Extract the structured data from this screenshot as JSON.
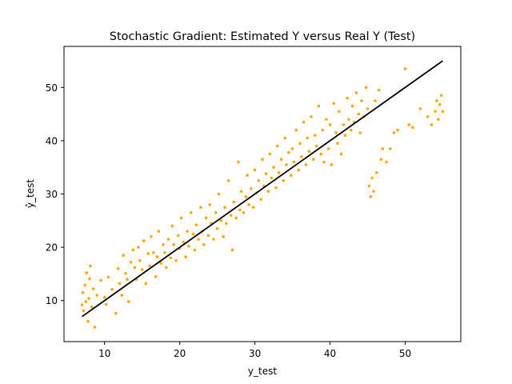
{
  "chart_data": {
    "type": "scatter",
    "title": "Stochastic Gradient: Estimated Y versus Real Y (Test)",
    "xlabel": "y_test",
    "ylabel": "ŷ_test",
    "xlim": [
      4.6,
      57.4
    ],
    "ylim": [
      2.3,
      57.7
    ],
    "xticks": [
      10,
      20,
      30,
      40,
      50
    ],
    "yticks": [
      10,
      20,
      30,
      40,
      50
    ],
    "grid": false,
    "colors": {
      "points": "#ffa500",
      "line": "#000000"
    },
    "reference_line": {
      "x": [
        7,
        55
      ],
      "y": [
        7,
        55
      ]
    },
    "series": [
      {
        "values": [
          [
            7.0,
            9.2
          ],
          [
            7.1,
            11.5
          ],
          [
            7.2,
            8.1
          ],
          [
            7.4,
            12.9
          ],
          [
            7.5,
            9.8
          ],
          [
            7.6,
            15.2
          ],
          [
            7.8,
            6.1
          ],
          [
            7.9,
            10.4
          ],
          [
            8.0,
            14.1
          ],
          [
            8.1,
            16.5
          ],
          [
            8.3,
            8.8
          ],
          [
            8.5,
            12.2
          ],
          [
            8.7,
            5.0
          ],
          [
            9.0,
            11.0
          ],
          [
            9.5,
            13.8
          ],
          [
            10.0,
            10.6
          ],
          [
            10.2,
            9.3
          ],
          [
            10.5,
            14.4
          ],
          [
            11.0,
            12.1
          ],
          [
            11.5,
            7.6
          ],
          [
            11.8,
            16.0
          ],
          [
            12.0,
            13.2
          ],
          [
            12.3,
            11.0
          ],
          [
            12.5,
            18.5
          ],
          [
            12.8,
            15.1
          ],
          [
            13.0,
            14.0
          ],
          [
            13.2,
            9.8
          ],
          [
            13.5,
            17.2
          ],
          [
            13.8,
            19.5
          ],
          [
            14.0,
            16.2
          ],
          [
            14.2,
            14.0
          ],
          [
            14.5,
            20.0
          ],
          [
            14.7,
            17.5
          ],
          [
            15.0,
            15.8
          ],
          [
            15.2,
            21.2
          ],
          [
            15.5,
            13.2
          ],
          [
            15.8,
            18.8
          ],
          [
            16.0,
            16.5
          ],
          [
            16.2,
            22.0
          ],
          [
            16.5,
            19.0
          ],
          [
            16.8,
            14.5
          ],
          [
            17.0,
            18.2
          ],
          [
            17.2,
            23.0
          ],
          [
            17.5,
            17.0
          ],
          [
            17.8,
            20.5
          ],
          [
            18.0,
            19.0
          ],
          [
            18.2,
            16.2
          ],
          [
            18.5,
            21.5
          ],
          [
            18.8,
            18.0
          ],
          [
            19.0,
            24.0
          ],
          [
            19.2,
            20.5
          ],
          [
            19.5,
            17.5
          ],
          [
            19.8,
            22.2
          ],
          [
            20.0,
            19.8
          ],
          [
            20.2,
            25.5
          ],
          [
            20.5,
            21.0
          ],
          [
            20.8,
            18.2
          ],
          [
            21.0,
            23.0
          ],
          [
            21.2,
            20.2
          ],
          [
            21.5,
            26.5
          ],
          [
            21.8,
            22.5
          ],
          [
            22.0,
            19.5
          ],
          [
            22.2,
            24.2
          ],
          [
            22.5,
            21.5
          ],
          [
            22.8,
            27.5
          ],
          [
            23.0,
            23.0
          ],
          [
            23.2,
            20.5
          ],
          [
            23.5,
            25.5
          ],
          [
            23.8,
            22.2
          ],
          [
            24.0,
            28.0
          ],
          [
            24.2,
            24.5
          ],
          [
            24.5,
            21.5
          ],
          [
            24.8,
            26.5
          ],
          [
            25.0,
            23.5
          ],
          [
            25.2,
            30.0
          ],
          [
            25.5,
            25.0
          ],
          [
            25.8,
            22.0
          ],
          [
            26.0,
            27.5
          ],
          [
            26.2,
            24.5
          ],
          [
            26.5,
            32.5
          ],
          [
            26.8,
            26.0
          ],
          [
            27.0,
            19.5
          ],
          [
            27.2,
            28.5
          ],
          [
            27.5,
            25.5
          ],
          [
            27.8,
            36.0
          ],
          [
            28.0,
            27.0
          ],
          [
            28.2,
            30.5
          ],
          [
            28.5,
            26.5
          ],
          [
            28.8,
            29.5
          ],
          [
            29.0,
            33.5
          ],
          [
            29.2,
            28.0
          ],
          [
            29.5,
            31.0
          ],
          [
            29.8,
            27.5
          ],
          [
            30.0,
            34.5
          ],
          [
            30.2,
            30.2
          ],
          [
            30.5,
            32.5
          ],
          [
            30.8,
            29.0
          ],
          [
            31.0,
            36.5
          ],
          [
            31.2,
            31.5
          ],
          [
            31.5,
            33.8
          ],
          [
            31.8,
            30.5
          ],
          [
            32.0,
            37.5
          ],
          [
            32.2,
            33.0
          ],
          [
            32.5,
            35.0
          ],
          [
            32.8,
            31.2
          ],
          [
            33.0,
            39.0
          ],
          [
            33.2,
            34.0
          ],
          [
            33.5,
            36.5
          ],
          [
            33.8,
            32.5
          ],
          [
            34.0,
            40.5
          ],
          [
            34.2,
            35.5
          ],
          [
            34.5,
            37.8
          ],
          [
            34.8,
            33.5
          ],
          [
            35.0,
            38.5
          ],
          [
            35.2,
            36.0
          ],
          [
            35.5,
            42.0
          ],
          [
            35.8,
            34.5
          ],
          [
            36.0,
            39.5
          ],
          [
            36.2,
            37.0
          ],
          [
            36.5,
            43.5
          ],
          [
            36.8,
            35.5
          ],
          [
            37.0,
            40.5
          ],
          [
            37.2,
            38.0
          ],
          [
            37.5,
            44.5
          ],
          [
            37.8,
            36.5
          ],
          [
            38.0,
            41.0
          ],
          [
            38.2,
            39.0
          ],
          [
            38.5,
            46.5
          ],
          [
            38.8,
            37.5
          ],
          [
            39.0,
            42.0
          ],
          [
            39.2,
            36.0
          ],
          [
            39.5,
            44.0
          ],
          [
            39.8,
            38.5
          ],
          [
            40.0,
            43.0
          ],
          [
            40.2,
            35.5
          ],
          [
            40.5,
            47.0
          ],
          [
            40.8,
            41.5
          ],
          [
            41.0,
            39.5
          ],
          [
            41.2,
            45.5
          ],
          [
            41.5,
            37.5
          ],
          [
            41.8,
            43.0
          ],
          [
            42.0,
            41.0
          ],
          [
            42.3,
            48.0
          ],
          [
            42.5,
            44.0
          ],
          [
            42.8,
            42.0
          ],
          [
            43.0,
            46.5
          ],
          [
            43.2,
            43.5
          ],
          [
            43.5,
            49.0
          ],
          [
            43.8,
            45.0
          ],
          [
            44.0,
            41.5
          ],
          [
            44.2,
            47.5
          ],
          [
            44.5,
            44.5
          ],
          [
            44.8,
            50.0
          ],
          [
            45.0,
            46.0
          ],
          [
            45.2,
            31.5
          ],
          [
            45.4,
            29.5
          ],
          [
            45.6,
            33.0
          ],
          [
            45.8,
            30.5
          ],
          [
            46.0,
            47.5
          ],
          [
            46.2,
            34.0
          ],
          [
            46.5,
            49.5
          ],
          [
            46.8,
            36.5
          ],
          [
            47.0,
            38.5
          ],
          [
            47.5,
            36.0
          ],
          [
            48.0,
            38.5
          ],
          [
            48.5,
            41.5
          ],
          [
            49.0,
            42.0
          ],
          [
            50.0,
            53.5
          ],
          [
            50.5,
            43.0
          ],
          [
            51.0,
            42.5
          ],
          [
            52.0,
            46.0
          ],
          [
            53.0,
            44.5
          ],
          [
            53.5,
            43.0
          ],
          [
            54.0,
            45.5
          ],
          [
            54.2,
            47.5
          ],
          [
            54.4,
            44.0
          ],
          [
            54.6,
            46.8
          ],
          [
            54.8,
            48.5
          ],
          [
            55.0,
            45.5
          ]
        ]
      }
    ]
  }
}
